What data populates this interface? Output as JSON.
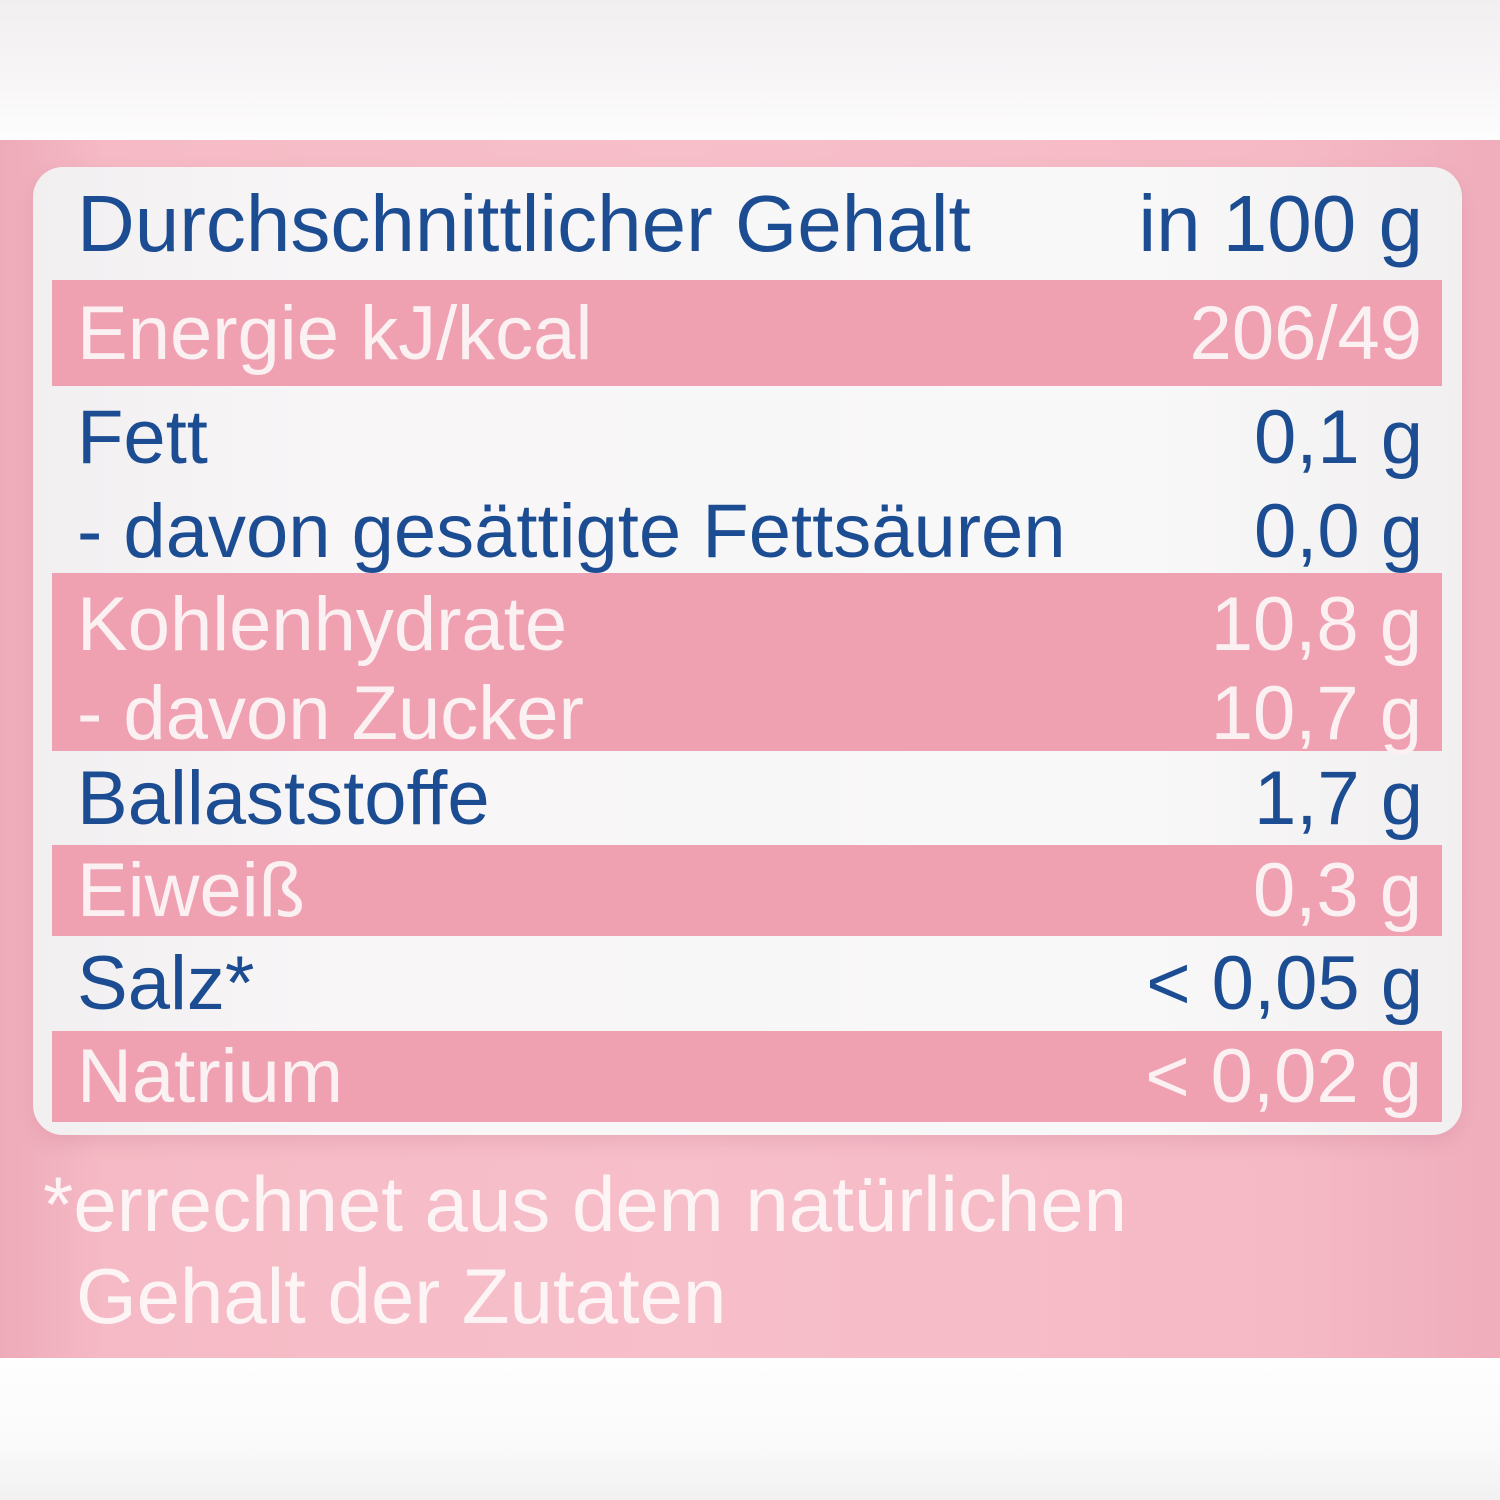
{
  "table": {
    "header": {
      "label": "Durchschnittlicher Gehalt",
      "unit": "in 100 g"
    },
    "rows": [
      {
        "label": "Energie kJ/kcal",
        "value": "206/49",
        "style": "pink"
      },
      {
        "label": "Fett",
        "value": "0,1 g",
        "style": "white"
      },
      {
        "label": "- davon gesättigte Fettsäuren",
        "value": "0,0 g",
        "style": "white"
      },
      {
        "label": "Kohlenhydrate",
        "value": "10,8 g",
        "style": "pink"
      },
      {
        "label": "- davon Zucker",
        "value": "10,7 g",
        "style": "pink"
      },
      {
        "label": "Ballaststoffe",
        "value": "1,7 g",
        "style": "white"
      },
      {
        "label": "Eiweiß",
        "value": "0,3 g",
        "style": "pink"
      },
      {
        "label": "Salz*",
        "value": "< 0,05 g",
        "style": "white"
      },
      {
        "label": "Natrium",
        "value": "< 0,02 g",
        "style": "pink"
      }
    ]
  },
  "footnote": {
    "line1": "*errechnet aus dem natürlichen",
    "line2": "Gehalt der Zutaten"
  },
  "colors": {
    "text_blue": "#1c4d93",
    "row_pink": "#efa1b1",
    "background_pink": "#f7bfca",
    "panel_white": "#f7f5f6",
    "white_text": "#fbf1f3"
  }
}
